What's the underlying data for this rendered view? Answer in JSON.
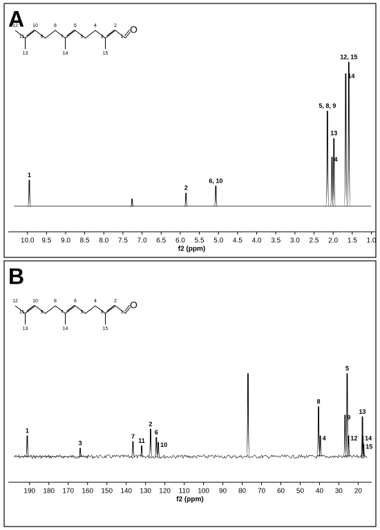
{
  "chart_data": [
    {
      "type": "spectrum",
      "panel": "A",
      "structure_labels": [
        "12",
        "11",
        "10",
        "9",
        "8",
        "7",
        "6",
        "5",
        "4",
        "3",
        "2",
        "1",
        "O",
        "13",
        "14",
        "15"
      ],
      "x_label": "f2 (ppm)",
      "xlim": [
        10.5,
        0.9
      ],
      "xticks": [
        {
          "value": 10,
          "label": "10.0"
        },
        9.5,
        {
          "value": 9,
          "label": "9.0"
        },
        8.5,
        {
          "value": 8,
          "label": "8.0"
        },
        7.5,
        {
          "value": 7,
          "label": "7.0"
        },
        6.5,
        {
          "value": 6,
          "label": "6.0"
        },
        5.5,
        {
          "value": 5,
          "label": "5.0"
        },
        4.5,
        {
          "value": 4,
          "label": "4.0"
        },
        3.5,
        {
          "value": 3,
          "label": "3.0"
        },
        2.5,
        {
          "value": 2,
          "label": "2.0"
        },
        1.5,
        {
          "value": 1,
          "label": "1.0"
        }
      ],
      "ylim": [
        0,
        100
      ],
      "x": [
        9.95,
        7.26,
        5.85,
        5.07,
        2.15,
        2.03,
        1.98,
        1.67,
        1.59
      ],
      "values": [
        18,
        5,
        9,
        14,
        66,
        34,
        47,
        92,
        100
      ],
      "labels": [
        "1",
        null,
        "2",
        "6, 10",
        "5, 8, 9",
        "4",
        "13",
        "14",
        "12, 15"
      ],
      "color": "#000000"
    },
    {
      "type": "spectrum",
      "panel": "B",
      "structure_labels": [
        "12",
        "11",
        "10",
        "9",
        "8",
        "7",
        "6",
        "5",
        "4",
        "3",
        "2",
        "1",
        "O",
        "13",
        "14",
        "15"
      ],
      "x_label": "f2 (ppm)",
      "xlim": [
        201,
        13
      ],
      "xticks": [
        190,
        180,
        170,
        160,
        150,
        140,
        130,
        120,
        110,
        100,
        90,
        80,
        70,
        60,
        50,
        40,
        30,
        20
      ],
      "ylim": [
        0,
        100
      ],
      "x": [
        191.2,
        163.8,
        136.5,
        132.0,
        127.4,
        124.4,
        123.4,
        77.0,
        40.5,
        39.6,
        26.8,
        25.7,
        25.0,
        17.8,
        17.6,
        17.2
      ],
      "values": [
        25,
        10,
        18,
        13,
        33,
        23,
        17,
        100,
        60,
        25,
        50,
        100,
        25,
        48,
        25,
        15
      ],
      "labels": [
        "1",
        "3",
        "7",
        "11",
        "2",
        "6",
        "10",
        null,
        "8",
        "4",
        "9",
        "5",
        "12",
        "13",
        "14",
        "15"
      ],
      "color": "#000000"
    }
  ]
}
